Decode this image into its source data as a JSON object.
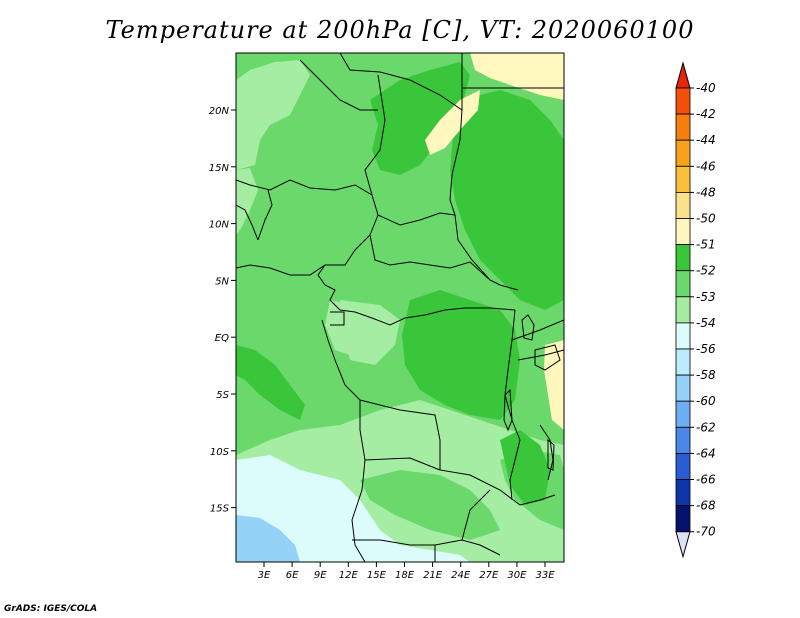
{
  "title": "Temperature at 200hPa [C], VT: 2020060100",
  "credit": "GrADS: IGES/COLA",
  "latitude_labels": [
    "20N",
    "15N",
    "10N",
    "5N",
    "EQ",
    "5S",
    "10S",
    "15S"
  ],
  "longitude_labels": [
    "3E",
    "6E",
    "9E",
    "12E",
    "15E",
    "18E",
    "21E",
    "24E",
    "27E",
    "30E",
    "33E"
  ],
  "colorbar": {
    "labels": [
      "-40",
      "-42",
      "-44",
      "-46",
      "-48",
      "-50",
      "-51",
      "-52",
      "-53",
      "-54",
      "-56",
      "-58",
      "-60",
      "-62",
      "-64",
      "-66",
      "-68",
      "-70"
    ],
    "colors": [
      "#e8240c",
      "#f2500a",
      "#f57e0e",
      "#f7a21a",
      "#f9c03c",
      "#fbe28a",
      "#fff7be",
      "#3ac63a",
      "#6ad86a",
      "#a6eda4",
      "#dcfcfc",
      "#bcecfc",
      "#94d2f8",
      "#6eaef2",
      "#4a88e8",
      "#2a5cd4",
      "#0e36aa",
      "#04146e",
      "#dce2fa"
    ]
  },
  "map": {
    "background_color": "#6ad86a",
    "palette": {
      "dark_green": "#3ac63a",
      "medium_green": "#6ad86a",
      "light_green": "#a6eda4",
      "pale_cyan": "#dcfcfc",
      "light_blue": "#94d2f8",
      "pale_yellow": "#fff7be",
      "border": "#000000"
    }
  }
}
